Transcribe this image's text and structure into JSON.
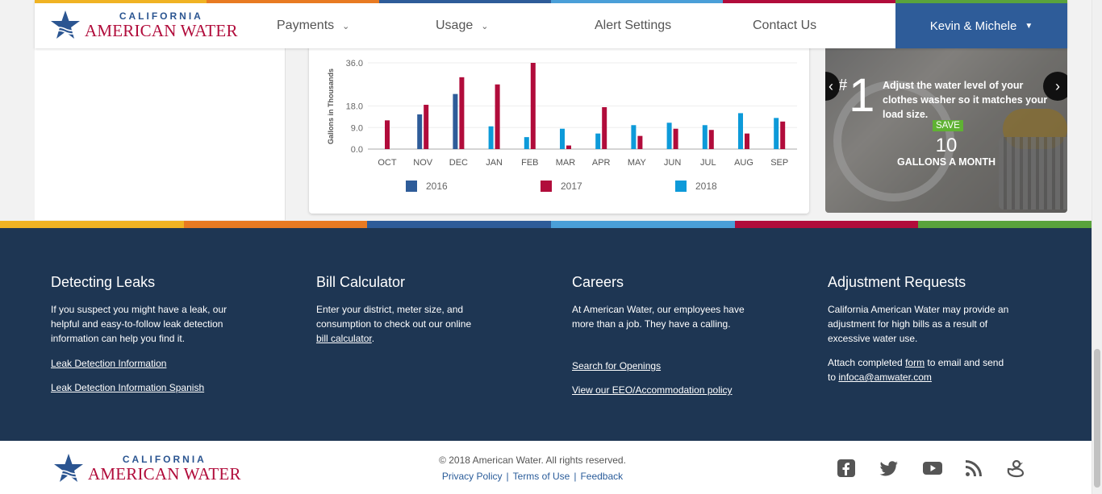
{
  "brand": {
    "line1": "CALIFORNIA",
    "line2": "AMERICAN WATER",
    "stripe_colors": [
      "#f0b323",
      "#e87a22",
      "#2e5c99",
      "#4a9fd8",
      "#b10c3b",
      "#59a33c"
    ]
  },
  "nav": {
    "payments": "Payments",
    "usage": "Usage",
    "alert_settings": "Alert Settings",
    "contact_us": "Contact Us",
    "user": "Kevin & Michele"
  },
  "chart_data": {
    "type": "bar",
    "ylabel": "Gallons in Thousands",
    "yticks": [
      "36.0",
      "18.0",
      "9.0",
      "0.0"
    ],
    "ylim": [
      0,
      36
    ],
    "categories": [
      "OCT",
      "NOV",
      "DEC",
      "JAN",
      "FEB",
      "MAR",
      "APR",
      "MAY",
      "JUN",
      "JUL",
      "AUG",
      "SEP"
    ],
    "series": [
      {
        "name": "2016",
        "color": "#2e5c99",
        "values": [
          null,
          14.5,
          23,
          null,
          null,
          null,
          null,
          null,
          null,
          null,
          null,
          null
        ]
      },
      {
        "name": "2017",
        "color": "#b10c3b",
        "values": [
          12,
          18.5,
          30,
          27,
          36,
          1.5,
          17.5,
          5.5,
          8.5,
          8,
          6.5,
          11.5
        ]
      },
      {
        "name": "2018",
        "color": "#0d9ad9",
        "values": [
          null,
          null,
          null,
          9.5,
          5,
          8.5,
          6.5,
          10,
          11,
          10,
          15,
          13
        ]
      }
    ]
  },
  "tip": {
    "hash": "#",
    "number": "1",
    "text": "Adjust the water level of your clothes washer so it matches your load size.",
    "save_label": "SAVE",
    "save_value": "10",
    "save_unit": "GALLONS A MONTH"
  },
  "footer": {
    "leaks": {
      "title": "Detecting Leaks",
      "text": "If you suspect you might have a leak, our helpful and easy-to-follow leak detection information can help you find it.",
      "link1": "Leak Detection Information",
      "link2": "Leak Detection Information Spanish"
    },
    "calc": {
      "title": "Bill Calculator",
      "text": "Enter your district, meter size, and consumption to check out our online",
      "link": "bill calculator",
      "after": "."
    },
    "careers": {
      "title": "Careers",
      "text": "At American Water, our employees have more than a job. They have a calling.",
      "link1": "Search for Openings",
      "link2": "View our EEO/Accommodation policy"
    },
    "adjust": {
      "title": "Adjustment Requests",
      "text": "California American Water may provide an adjustment for high bills as a result of excessive water use.",
      "attach_pre": "Attach completed",
      "form_link": "form",
      "attach_mid": "to email and send to",
      "email": "infoca@amwater.com"
    }
  },
  "bottom": {
    "copyright": "© 2018 American Water. All rights reserved.",
    "privacy": "Privacy Policy",
    "terms": "Terms of Use",
    "feedback": "Feedback",
    "separator": "|"
  },
  "social_icons": [
    "facebook-icon",
    "twitter-icon",
    "youtube-icon",
    "rss-icon",
    "duck-icon"
  ]
}
